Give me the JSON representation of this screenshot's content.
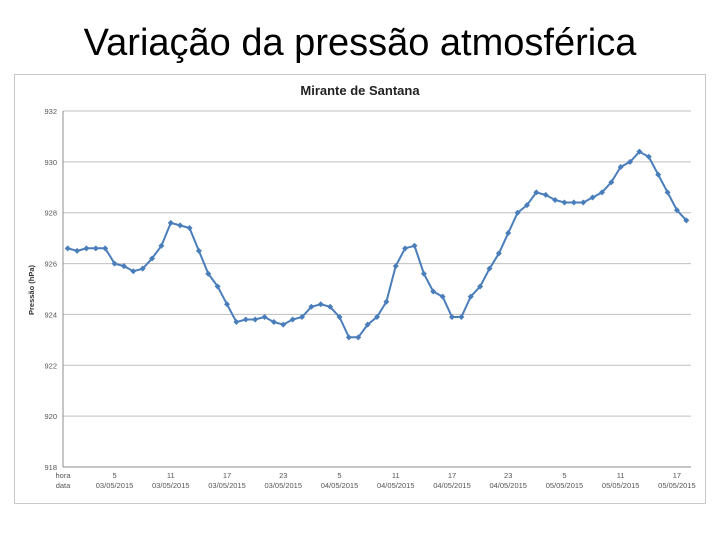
{
  "slide": {
    "title": "Variação da pressão atmosférica"
  },
  "chart_data": {
    "type": "line",
    "title": "Mirante de Santana",
    "ylabel": "Pressão (hPa)",
    "xlabel": "",
    "ylim": [
      918,
      932
    ],
    "yticks": [
      "918",
      "920",
      "922",
      "924",
      "926",
      "928",
      "930",
      "932"
    ],
    "grid": true,
    "x_tick_labels": [
      {
        "hour": "hora",
        "date": "data"
      },
      {
        "hour": "5",
        "date": "03/05/2015"
      },
      {
        "hour": "11",
        "date": "03/05/2015"
      },
      {
        "hour": "17",
        "date": "03/05/2015"
      },
      {
        "hour": "23",
        "date": "03/05/2015"
      },
      {
        "hour": "5",
        "date": "04/05/2015"
      },
      {
        "hour": "11",
        "date": "04/05/2015"
      },
      {
        "hour": "17",
        "date": "04/05/2015"
      },
      {
        "hour": "23",
        "date": "04/05/2015"
      },
      {
        "hour": "5",
        "date": "05/05/2015"
      },
      {
        "hour": "11",
        "date": "05/05/2015"
      },
      {
        "hour": "17",
        "date": "05/05/2015"
      }
    ],
    "series": [
      {
        "color": "#4a7ebb",
        "values": [
          926.6,
          926.5,
          926.6,
          926.6,
          926.6,
          926.0,
          925.9,
          925.7,
          925.8,
          926.2,
          926.7,
          927.6,
          927.5,
          927.4,
          926.5,
          925.6,
          925.1,
          924.4,
          923.7,
          923.8,
          923.8,
          923.9,
          923.7,
          923.6,
          923.8,
          923.9,
          924.3,
          924.4,
          924.3,
          923.9,
          923.1,
          923.1,
          923.6,
          923.9,
          924.5,
          925.9,
          926.6,
          926.7,
          925.6,
          924.9,
          924.7,
          923.9,
          923.9,
          924.7,
          925.1,
          925.8,
          926.4,
          927.2,
          928.0,
          928.3,
          928.8,
          928.7,
          928.5,
          928.4,
          928.4,
          928.4,
          928.6,
          928.8,
          929.2,
          929.8,
          930.0,
          930.4,
          930.2,
          929.5,
          928.8,
          928.1,
          927.7
        ]
      }
    ]
  }
}
